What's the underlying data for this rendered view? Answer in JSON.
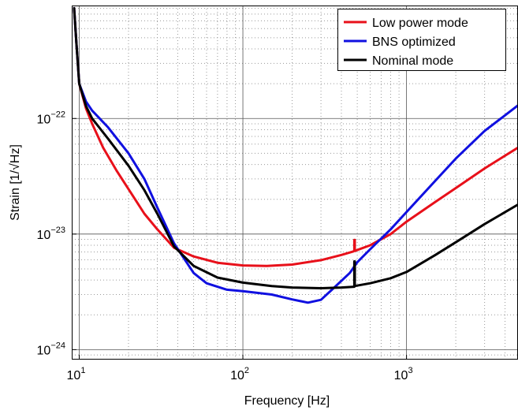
{
  "chart_data": {
    "type": "line",
    "title": "",
    "xlabel": "Frequency [Hz]",
    "ylabel": "Strain [1/√Hz]",
    "xscale": "log",
    "yscale": "log",
    "xlim": [
      9,
      4800
    ],
    "ylim": [
      8.2e-25,
      9.5e-22
    ],
    "grid": "major solid, minor dotted",
    "legend_position": "top-right",
    "x_ticks": [
      {
        "value": 10,
        "base": "10",
        "exp": "1"
      },
      {
        "value": 100,
        "base": "10",
        "exp": "2"
      },
      {
        "value": 1000,
        "base": "10",
        "exp": "3"
      }
    ],
    "y_ticks": [
      {
        "value": 1e-24,
        "base": "10",
        "exp": "−24"
      },
      {
        "value": 1e-23,
        "base": "10",
        "exp": "−23"
      },
      {
        "value": 1e-22,
        "base": "10",
        "exp": "−22"
      }
    ],
    "series": [
      {
        "name": "Low power mode",
        "color": "#e8101a",
        "points": [
          [
            9.3,
            9e-22
          ],
          [
            9.6,
            4.6e-22
          ],
          [
            10.0,
            2e-22
          ],
          [
            11.0,
            1.22e-22
          ],
          [
            12.0,
            9e-23
          ],
          [
            14.0,
            5.6e-23
          ],
          [
            17.0,
            3.5e-23
          ],
          [
            20.0,
            2.45e-23
          ],
          [
            25.0,
            1.5e-23
          ],
          [
            30.0,
            1.1e-23
          ],
          [
            38.0,
            7.6e-24
          ],
          [
            50.0,
            6.4e-24
          ],
          [
            70.0,
            5.65e-24
          ],
          [
            100.0,
            5.35e-24
          ],
          [
            140.0,
            5.3e-24
          ],
          [
            200.0,
            5.45e-24
          ],
          [
            300.0,
            5.95e-24
          ],
          [
            400.0,
            6.6e-24
          ],
          [
            470.0,
            7.05e-24
          ],
          [
            480.0,
            7.15e-24
          ],
          [
            480.0,
            8.9e-24
          ],
          [
            483.0,
            8.9e-24
          ],
          [
            483.0,
            7.15e-24
          ],
          [
            600.0,
            8e-24
          ],
          [
            800.0,
            1e-23
          ],
          [
            1000.0,
            1.28e-23
          ],
          [
            1500.0,
            1.9e-23
          ],
          [
            2000.0,
            2.5e-23
          ],
          [
            3000.0,
            3.7e-23
          ],
          [
            4800.0,
            5.6e-23
          ]
        ]
      },
      {
        "name": "BNS optimized",
        "color": "#1010e0",
        "points": [
          [
            9.3,
            9e-22
          ],
          [
            9.6,
            4.6e-22
          ],
          [
            10.0,
            2e-22
          ],
          [
            11.0,
            1.4e-22
          ],
          [
            12.0,
            1.17e-22
          ],
          [
            15.0,
            8.4e-23
          ],
          [
            20.0,
            5e-23
          ],
          [
            25.0,
            3e-23
          ],
          [
            30.0,
            1.7e-23
          ],
          [
            38.0,
            8.3e-24
          ],
          [
            50.0,
            4.6e-24
          ],
          [
            60.0,
            3.75e-24
          ],
          [
            80.0,
            3.3e-24
          ],
          [
            100.0,
            3.2e-24
          ],
          [
            150.0,
            3e-24
          ],
          [
            200.0,
            2.72e-24
          ],
          [
            250.0,
            2.55e-24
          ],
          [
            300.0,
            2.7e-24
          ],
          [
            350.0,
            3.3e-24
          ],
          [
            450.0,
            4.6e-24
          ],
          [
            500.0,
            5.7e-24
          ],
          [
            600.0,
            7.4e-24
          ],
          [
            800.0,
            1.1e-23
          ],
          [
            1000.0,
            1.55e-23
          ],
          [
            1500.0,
            2.9e-23
          ],
          [
            2000.0,
            4.5e-23
          ],
          [
            3000.0,
            7.8e-23
          ],
          [
            4800.0,
            1.3e-22
          ]
        ]
      },
      {
        "name": "Nominal mode",
        "color": "#000000",
        "points": [
          [
            9.3,
            9e-22
          ],
          [
            9.6,
            4.6e-22
          ],
          [
            10.0,
            2e-22
          ],
          [
            11.0,
            1.28e-22
          ],
          [
            12.0,
            1e-22
          ],
          [
            15.0,
            6.7e-23
          ],
          [
            20.0,
            3.9e-23
          ],
          [
            25.0,
            2.4e-23
          ],
          [
            30.0,
            1.5e-23
          ],
          [
            38.0,
            7.8e-24
          ],
          [
            50.0,
            5.3e-24
          ],
          [
            70.0,
            4.2e-24
          ],
          [
            100.0,
            3.8e-24
          ],
          [
            150.0,
            3.55e-24
          ],
          [
            200.0,
            3.45e-24
          ],
          [
            300.0,
            3.4e-24
          ],
          [
            400.0,
            3.45e-24
          ],
          [
            480.0,
            3.5e-24
          ],
          [
            480.0,
            5.8e-24
          ],
          [
            483.0,
            5.8e-24
          ],
          [
            483.0,
            3.55e-24
          ],
          [
            600.0,
            3.75e-24
          ],
          [
            800.0,
            4.15e-24
          ],
          [
            1000.0,
            4.7e-24
          ],
          [
            1500.0,
            6.6e-24
          ],
          [
            2000.0,
            8.5e-24
          ],
          [
            3000.0,
            1.22e-23
          ],
          [
            4800.0,
            1.8e-23
          ]
        ]
      }
    ]
  }
}
